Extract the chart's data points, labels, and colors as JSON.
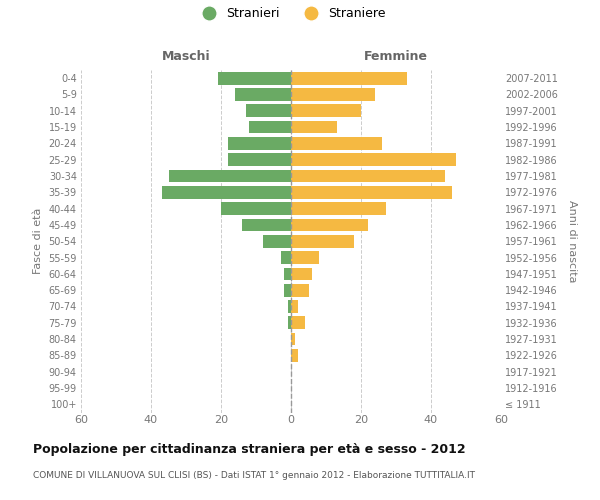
{
  "age_groups": [
    "100+",
    "95-99",
    "90-94",
    "85-89",
    "80-84",
    "75-79",
    "70-74",
    "65-69",
    "60-64",
    "55-59",
    "50-54",
    "45-49",
    "40-44",
    "35-39",
    "30-34",
    "25-29",
    "20-24",
    "15-19",
    "10-14",
    "5-9",
    "0-4"
  ],
  "birth_years": [
    "≤ 1911",
    "1912-1916",
    "1917-1921",
    "1922-1926",
    "1927-1931",
    "1932-1936",
    "1937-1941",
    "1942-1946",
    "1947-1951",
    "1952-1956",
    "1957-1961",
    "1962-1966",
    "1967-1971",
    "1972-1976",
    "1977-1981",
    "1982-1986",
    "1987-1991",
    "1992-1996",
    "1997-2001",
    "2002-2006",
    "2007-2011"
  ],
  "males": [
    0,
    0,
    0,
    0,
    0,
    1,
    1,
    2,
    2,
    3,
    8,
    14,
    20,
    37,
    35,
    18,
    18,
    12,
    13,
    16,
    21
  ],
  "females": [
    0,
    0,
    0,
    2,
    1,
    4,
    2,
    5,
    6,
    8,
    18,
    22,
    27,
    46,
    44,
    47,
    26,
    13,
    20,
    24,
    33
  ],
  "male_color": "#6aaa64",
  "female_color": "#f5b942",
  "background_color": "#ffffff",
  "grid_color": "#cccccc",
  "title": "Popolazione per cittadinanza straniera per età e sesso - 2012",
  "subtitle": "COMUNE DI VILLANUOVA SUL CLISI (BS) - Dati ISTAT 1° gennaio 2012 - Elaborazione TUTTITALIA.IT",
  "xlabel_left": "Maschi",
  "xlabel_right": "Femmine",
  "ylabel_left": "Fasce di età",
  "ylabel_right": "Anni di nascita",
  "legend_male": "Stranieri",
  "legend_female": "Straniere",
  "xlim": 60
}
